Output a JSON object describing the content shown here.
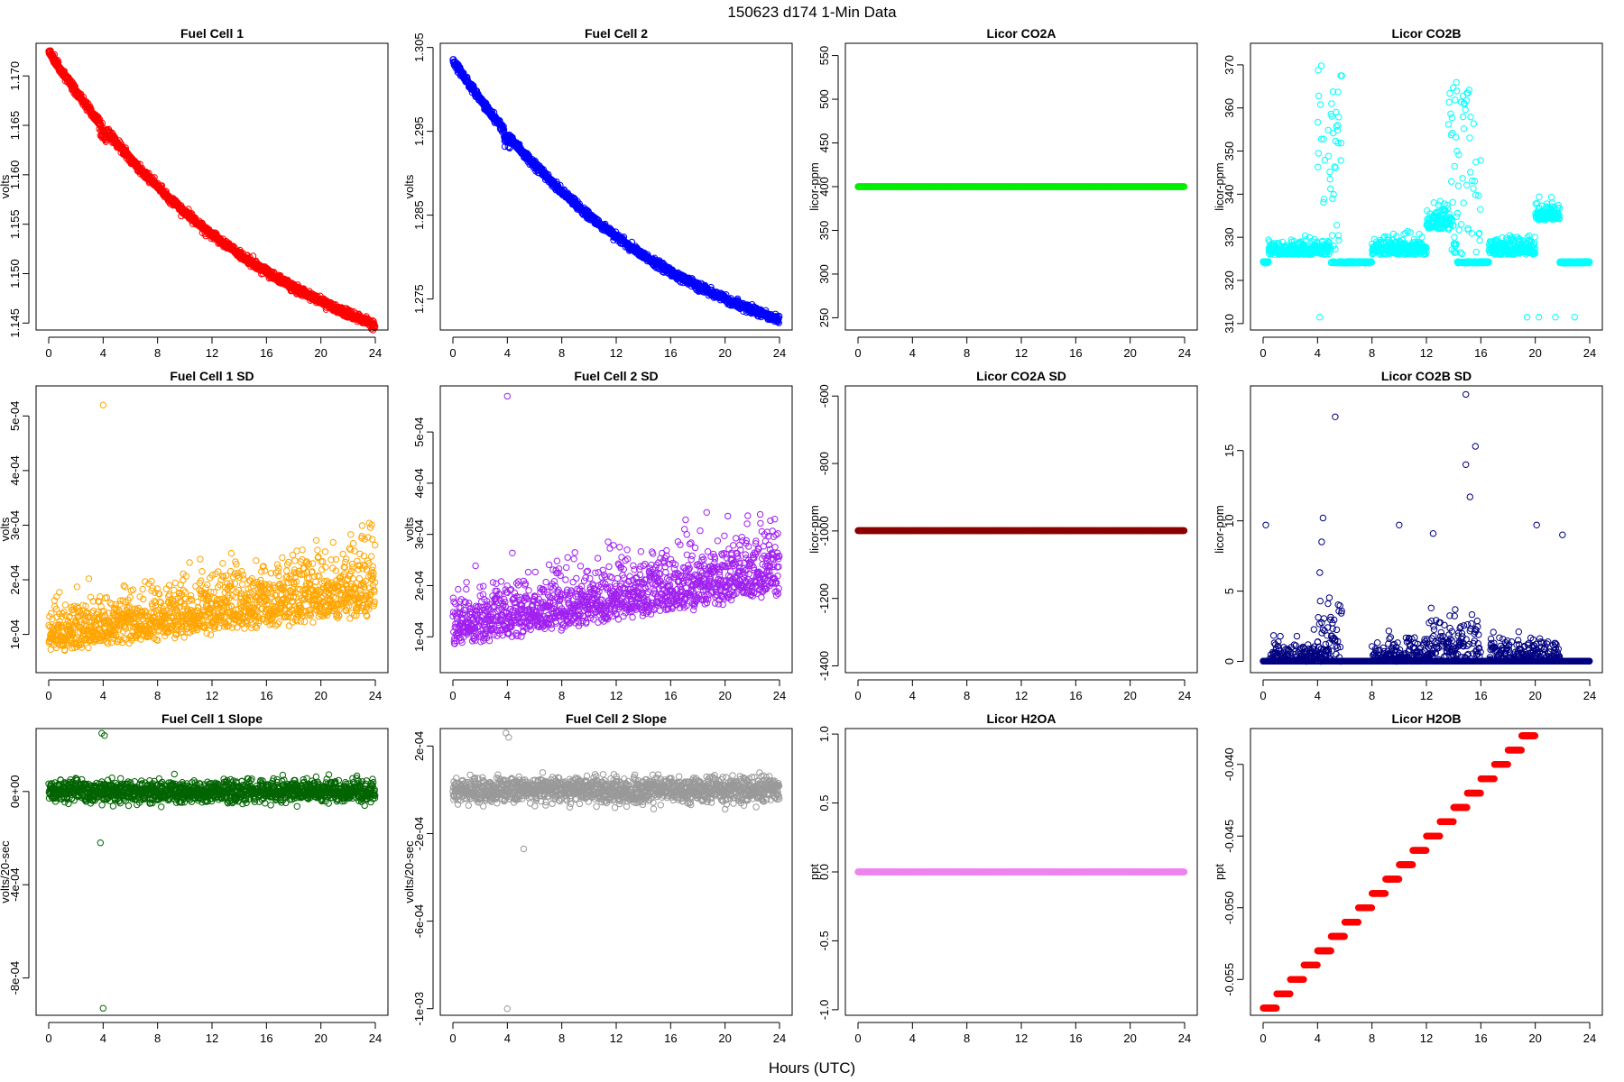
{
  "figure": {
    "title": "150623   d174   1-Min Data",
    "xlabel": "Hours (UTC)"
  },
  "chart_data": [
    {
      "id": "fc1",
      "type": "scatter",
      "title": "Fuel Cell 1",
      "xlabel": "",
      "ylabel": "volts",
      "color": "#ff0000",
      "xlim": [
        0,
        24
      ],
      "ylim": [
        1.1443,
        1.1733
      ],
      "xticks": [
        0,
        4,
        8,
        12,
        16,
        20,
        24
      ],
      "yticks": [
        1.145,
        1.15,
        1.155,
        1.16,
        1.165,
        1.17
      ],
      "ytick_labels": [
        "1.145",
        "1.150",
        "1.155",
        "1.160",
        "1.165",
        "1.170"
      ],
      "pattern": "decay",
      "params": {
        "start": 1.1725,
        "end": 1.1448,
        "k": 1.4,
        "noise": 0.00035,
        "bump_x": 4,
        "bump_y": -0.0012
      }
    },
    {
      "id": "fc2",
      "type": "scatter",
      "title": "Fuel Cell 2",
      "xlabel": "",
      "ylabel": "volts",
      "color": "#0000ff",
      "xlim": [
        0,
        24
      ],
      "ylim": [
        1.2713,
        1.3055
      ],
      "xticks": [
        0,
        4,
        8,
        12,
        16,
        20,
        24
      ],
      "yticks": [
        1.275,
        1.285,
        1.295,
        1.305
      ],
      "ytick_labels": [
        "1.275",
        "1.285",
        "1.295",
        "1.305"
      ],
      "pattern": "decay",
      "params": {
        "start": 1.3035,
        "end": 1.2725,
        "k": 1.5,
        "noise": 0.0004,
        "bump_x": 4,
        "bump_y": -0.0015
      }
    },
    {
      "id": "co2a",
      "type": "scatter",
      "title": "Licor CO2A",
      "xlabel": "",
      "ylabel": "licor-ppm",
      "color": "#00ee00",
      "xlim": [
        0,
        24
      ],
      "ylim": [
        236,
        564
      ],
      "xticks": [
        0,
        4,
        8,
        12,
        16,
        20,
        24
      ],
      "yticks": [
        250,
        300,
        350,
        400,
        450,
        500,
        550
      ],
      "ytick_labels": [
        "250",
        "300",
        "350",
        "400",
        "450",
        "500",
        "550"
      ],
      "pattern": "flat",
      "params": {
        "value": 400
      }
    },
    {
      "id": "co2b",
      "type": "scatter",
      "title": "Licor CO2B",
      "xlabel": "",
      "ylabel": "licor-ppm",
      "color": "#00ffff",
      "xlim": [
        0,
        24
      ],
      "ylim": [
        308.5,
        375
      ],
      "xticks": [
        0,
        4,
        8,
        12,
        16,
        20,
        24
      ],
      "yticks": [
        310,
        320,
        330,
        340,
        350,
        360,
        370
      ],
      "ytick_labels": [
        "310",
        "320",
        "330",
        "340",
        "350",
        "360",
        "370"
      ],
      "pattern": "co2b",
      "params": {
        "base": 324
      }
    },
    {
      "id": "fc1sd",
      "type": "scatter",
      "title": "Fuel Cell 1 SD",
      "xlabel": "",
      "ylabel": "volts",
      "color": "#ffa500",
      "xlim": [
        0,
        24
      ],
      "ylim": [
        3e-05,
        0.000555
      ],
      "xticks": [
        0,
        4,
        8,
        12,
        16,
        20,
        24
      ],
      "yticks": [
        0.0001,
        0.0002,
        0.0003,
        0.0004,
        0.0005
      ],
      "ytick_labels": [
        "1e-04",
        "2e-04",
        "3e-04",
        "4e-04",
        "5e-04"
      ],
      "pattern": "sd",
      "params": {
        "base": 8e-05,
        "slope": 3e-06,
        "spread": 6e-05,
        "outliers": [
          [
            4,
            0.00052
          ]
        ]
      }
    },
    {
      "id": "fc2sd",
      "type": "scatter",
      "title": "Fuel Cell 2 SD",
      "xlabel": "",
      "ylabel": "volts",
      "color": "#a020f0",
      "xlim": [
        0,
        24
      ],
      "ylim": [
        3e-05,
        0.00059
      ],
      "xticks": [
        0,
        4,
        8,
        12,
        16,
        20,
        24
      ],
      "yticks": [
        0.0001,
        0.0002,
        0.0003,
        0.0004,
        0.0005
      ],
      "ytick_labels": [
        "1e-04",
        "2e-04",
        "3e-04",
        "4e-04",
        "5e-04"
      ],
      "pattern": "sd",
      "params": {
        "base": 0.0001,
        "slope": 4e-06,
        "spread": 7e-05,
        "outliers": [
          [
            4,
            0.00057
          ]
        ]
      }
    },
    {
      "id": "co2asd",
      "type": "scatter",
      "title": "Licor CO2A SD",
      "xlabel": "",
      "ylabel": "licor-ppm",
      "color": "#8b0000",
      "xlim": [
        0,
        24
      ],
      "ylim": [
        -1420,
        -570
      ],
      "xticks": [
        0,
        4,
        8,
        12,
        16,
        20,
        24
      ],
      "yticks": [
        -1400,
        -1200,
        -1000,
        -800,
        -600
      ],
      "ytick_labels": [
        "-1400",
        "-1200",
        "-1000",
        "-800",
        "-600"
      ],
      "pattern": "flat",
      "params": {
        "value": -999
      }
    },
    {
      "id": "co2bsd",
      "type": "scatter",
      "title": "Licor CO2B SD",
      "xlabel": "",
      "ylabel": "licor-ppm",
      "color": "#000080",
      "xlim": [
        0,
        24
      ],
      "ylim": [
        -0.8,
        19.6
      ],
      "xticks": [
        0,
        4,
        8,
        12,
        16,
        20,
        24
      ],
      "yticks": [
        0,
        5,
        10,
        15
      ],
      "ytick_labels": [
        "0",
        "5",
        "10",
        "15"
      ],
      "pattern": "co2bsd",
      "params": {}
    },
    {
      "id": "fc1slope",
      "type": "scatter",
      "title": "Fuel Cell 1 Slope",
      "xlabel": "",
      "ylabel": "volts/20-sec",
      "color": "#006400",
      "xlim": [
        0,
        24
      ],
      "ylim": [
        -0.00096,
        0.00027
      ],
      "xticks": [
        0,
        4,
        8,
        12,
        16,
        20,
        24
      ],
      "yticks": [
        -0.0008,
        -0.0004,
        0
      ],
      "ytick_labels": [
        "-8e-04",
        "-4e-04",
        "0e+00"
      ],
      "pattern": "slope",
      "params": {
        "spread": 4e-05,
        "outliers": [
          [
            4,
            -0.00093
          ],
          [
            3.9,
            0.00025
          ],
          [
            4.1,
            0.00024
          ],
          [
            3.8,
            -0.00022
          ]
        ]
      }
    },
    {
      "id": "fc2slope",
      "type": "scatter",
      "title": "Fuel Cell 2 Slope",
      "xlabel": "",
      "ylabel": "volts/20-sec",
      "color": "#999999",
      "xlim": [
        0,
        24
      ],
      "ylim": [
        -0.00103,
        0.00028
      ],
      "xticks": [
        0,
        4,
        8,
        12,
        16,
        20,
        24
      ],
      "yticks": [
        -0.001,
        -0.0006,
        -0.0002,
        0.0002
      ],
      "ytick_labels": [
        "-1e-03",
        "-6e-04",
        "-2e-04",
        "2e-04"
      ],
      "pattern": "slope",
      "params": {
        "spread": 5e-05,
        "outliers": [
          [
            4,
            -0.001
          ],
          [
            3.9,
            0.00026
          ],
          [
            4.1,
            0.00024
          ],
          [
            5.2,
            -0.00027
          ]
        ]
      }
    },
    {
      "id": "h2oa",
      "type": "scatter",
      "title": "Licor H2OA",
      "xlabel": "",
      "ylabel": "ppt",
      "color": "#ee82ee",
      "xlim": [
        0,
        24
      ],
      "ylim": [
        -1.04,
        1.04
      ],
      "xticks": [
        0,
        4,
        8,
        12,
        16,
        20,
        24
      ],
      "yticks": [
        -1,
        -0.5,
        0,
        0.5,
        1
      ],
      "ytick_labels": [
        "-1.0",
        "-0.5",
        "0.0",
        "0.5",
        "1.0"
      ],
      "pattern": "flat",
      "params": {
        "value": 0
      }
    },
    {
      "id": "h2ob",
      "type": "scatter",
      "title": "Licor H2OB",
      "xlabel": "",
      "ylabel": "ppt",
      "color": "#ff0000",
      "xlim": [
        0,
        24
      ],
      "ylim": [
        -0.0575,
        -0.0375
      ],
      "xticks": [
        0,
        4,
        8,
        12,
        16,
        20,
        24
      ],
      "yticks": [
        -0.055,
        -0.05,
        -0.045,
        -0.04
      ],
      "ytick_labels": [
        "-0.055",
        "-0.050",
        "-0.045",
        "-0.040"
      ],
      "pattern": "steps",
      "params": {
        "start": -0.057,
        "step": 0.001,
        "levels": 24
      }
    }
  ]
}
